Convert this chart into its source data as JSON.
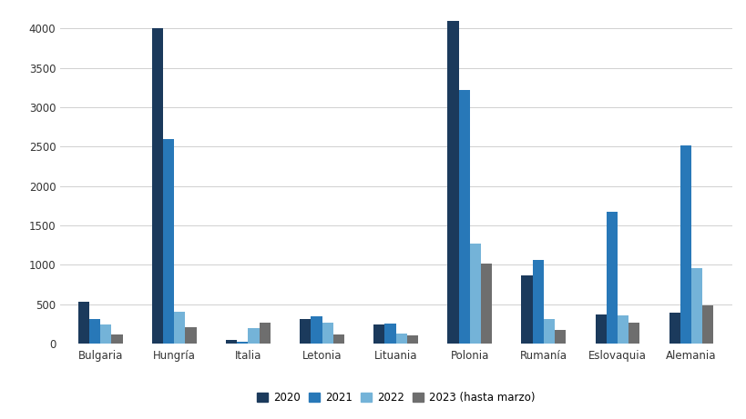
{
  "categories": [
    "Bulgaria",
    "Hungría",
    "Italia",
    "Letonia",
    "Lituania",
    "Polonia",
    "Rumanía",
    "Eslovaquia",
    "Alemania"
  ],
  "series": {
    "2020": [
      530,
      4000,
      50,
      310,
      240,
      4100,
      870,
      370,
      390
    ],
    "2021": [
      310,
      2600,
      20,
      350,
      250,
      3220,
      1060,
      1670,
      2520
    ],
    "2022": [
      240,
      400,
      200,
      270,
      130,
      1270,
      310,
      360,
      960
    ],
    "2023 (hasta marzo)": [
      110,
      210,
      270,
      110,
      100,
      1020,
      170,
      260,
      490
    ]
  },
  "colors": {
    "2020": "#1b3a5c",
    "2021": "#2878b8",
    "2022": "#74b3d8",
    "2023 (hasta marzo)": "#6e6e6e"
  },
  "ylim": [
    0,
    4200
  ],
  "yticks": [
    0,
    500,
    1000,
    1500,
    2000,
    2500,
    3000,
    3500,
    4000
  ],
  "background_color": "#ffffff",
  "grid_color": "#d0d0d0",
  "bar_width": 0.15,
  "legend_labels": [
    "2020",
    "2021",
    "2022",
    "2023 (hasta marzo)"
  ],
  "figsize": [
    8.2,
    4.61
  ],
  "dpi": 100
}
